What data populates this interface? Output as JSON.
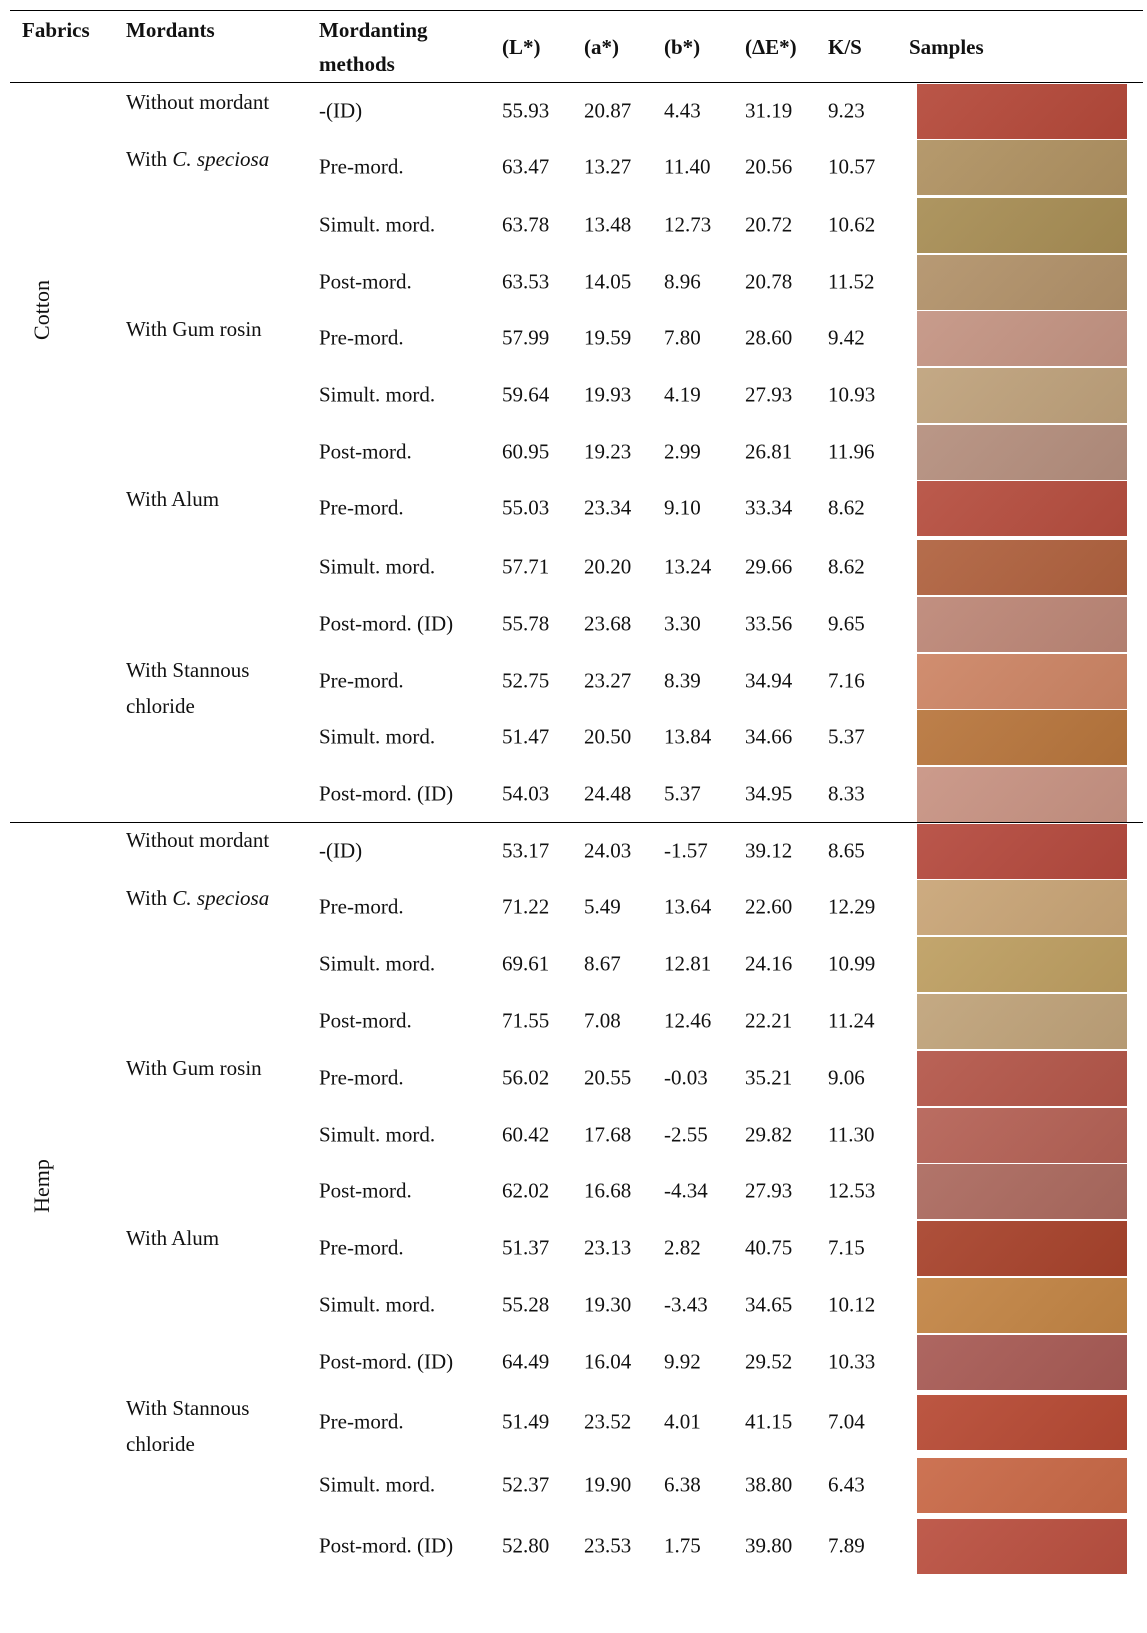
{
  "headers": {
    "fabrics": "Fabrics",
    "mordants": "Mordants",
    "methods_line1": "Mordanting",
    "methods_line2": "methods",
    "L": "(L*)",
    "a": "(a*)",
    "b": "(b*)",
    "dE": "(ΔE*)",
    "ks": "K/S",
    "samples": "Samples"
  },
  "groups": [
    {
      "fabric": "Cotton",
      "mordants": [
        {
          "prefix": "Without mordant",
          "italic": ""
        },
        {
          "prefix": "With ",
          "italic": "C. speciosa"
        },
        {
          "prefix": "With Gum rosin",
          "italic": ""
        },
        {
          "prefix": "With Alum",
          "italic": ""
        },
        {
          "prefix": "With Stannous chloride",
          "italic": ""
        }
      ],
      "rows": [
        {
          "method": "-(ID)",
          "L": "55.93",
          "a": "20.87",
          "b": "4.43",
          "dE": "31.19",
          "ks": "9.23",
          "color": "#b5493a"
        },
        {
          "method": "Pre-mord.",
          "L": "63.47",
          "a": "13.27",
          "b": "11.40",
          "dE": "20.56",
          "ks": "10.57",
          "color": "#b09262"
        },
        {
          "method": "Simult. mord.",
          "L": "63.78",
          "a": "13.48",
          "b": "12.73",
          "dE": "20.72",
          "ks": "10.62",
          "color": "#a88e55"
        },
        {
          "method": "Post-mord.",
          "L": "63.53",
          "a": "14.05",
          "b": "8.96",
          "dE": "20.78",
          "ks": "11.52",
          "color": "#b2926a"
        },
        {
          "method": "Pre-mord.",
          "L": "57.99",
          "a": "19.59",
          "b": "7.80",
          "dE": "28.60",
          "ks": "9.42",
          "color": "#c49483"
        },
        {
          "method": "Simult. mord.",
          "L": "59.64",
          "a": "19.93",
          "b": "4.19",
          "dE": "27.93",
          "ks": "10.93",
          "color": "#bfa27c"
        },
        {
          "method": "Post-mord.",
          "L": "60.95",
          "a": "19.23",
          "b": "2.99",
          "dE": "26.81",
          "ks": "11.96",
          "color": "#b58f7e"
        },
        {
          "method": "Pre-mord.",
          "L": "55.03",
          "a": "23.34",
          "b": "9.10",
          "dE": "33.34",
          "ks": "8.62",
          "color": "#b64e3f"
        },
        {
          "method": "Simult. mord.",
          "L": "57.71",
          "a": "20.20",
          "b": "13.24",
          "dE": "29.66",
          "ks": "8.62",
          "color": "#b0623f"
        },
        {
          "method": "Post-mord. (ID)",
          "L": "55.78",
          "a": "23.68",
          "b": "3.30",
          "dE": "33.56",
          "ks": "9.65",
          "color": "#bd8777"
        },
        {
          "method": "Pre-mord.",
          "L": "52.75",
          "a": "23.27",
          "b": "8.39",
          "dE": "34.94",
          "ks": "7.16",
          "color": "#cd8565"
        },
        {
          "method": "Simult. mord.",
          "L": "51.47",
          "a": "20.50",
          "b": "13.84",
          "dE": "34.66",
          "ks": "5.37",
          "color": "#b8763d"
        },
        {
          "method": "Post-mord. (ID)",
          "L": "54.03",
          "a": "24.48",
          "b": "5.37",
          "dE": "34.95",
          "ks": "8.33",
          "color": "#c89383"
        }
      ]
    },
    {
      "fabric": "Hemp",
      "mordants": [
        {
          "prefix": "Without mordant",
          "italic": ""
        },
        {
          "prefix": "With ",
          "italic": "C. speciosa"
        },
        {
          "prefix": "With Gum rosin",
          "italic": ""
        },
        {
          "prefix": "With Alum",
          "italic": ""
        },
        {
          "prefix": "With Stannous chloride",
          "italic": ""
        }
      ],
      "rows": [
        {
          "method": "-(ID)",
          "L": "53.17",
          "a": "24.03",
          "b": "-1.57",
          "dE": "39.12",
          "ks": "8.65",
          "color": "#b54a3e"
        },
        {
          "method": "Pre-mord.",
          "L": "71.22",
          "a": "5.49",
          "b": "13.64",
          "dE": "22.60",
          "ks": "12.29",
          "color": "#c9a577"
        },
        {
          "method": "Simult. mord.",
          "L": "69.61",
          "a": "8.67",
          "b": "12.81",
          "dE": "24.16",
          "ks": "10.99",
          "color": "#be9f62"
        },
        {
          "method": "Post-mord.",
          "L": "71.55",
          "a": "7.08",
          "b": "12.46",
          "dE": "22.21",
          "ks": "11.24",
          "color": "#c0a37a"
        },
        {
          "method": "Pre-mord.",
          "L": "56.02",
          "a": "20.55",
          "b": "-0.03",
          "dE": "35.21",
          "ks": "9.06",
          "color": "#b4574a"
        },
        {
          "method": "Simult. mord.",
          "L": "60.42",
          "a": "17.68",
          "b": "-2.55",
          "dE": "29.82",
          "ks": "11.30",
          "color": "#b56256"
        },
        {
          "method": "Post-mord.",
          "L": "62.02",
          "a": "16.68",
          "b": "-4.34",
          "dE": "27.93",
          "ks": "12.53",
          "color": "#ac6a5f"
        },
        {
          "method": "Pre-mord.",
          "L": "51.37",
          "a": "23.13",
          "b": "2.82",
          "dE": "40.75",
          "ks": "7.15",
          "color": "#a8432c"
        },
        {
          "method": "Simult. mord.",
          "L": "55.28",
          "a": "19.30",
          "b": "-3.43",
          "dE": "34.65",
          "ks": "10.12",
          "color": "#c38545"
        },
        {
          "method": "Post-mord. (ID)",
          "L": "64.49",
          "a": "16.04",
          "b": "9.92",
          "dE": "29.52",
          "ks": "10.33",
          "color": "#a85b55"
        },
        {
          "method": "Pre-mord.",
          "L": "51.49",
          "a": "23.52",
          "b": "4.01",
          "dE": "41.15",
          "ks": "7.04",
          "color": "#b74a34"
        },
        {
          "method": "Simult. mord.",
          "L": "52.37",
          "a": "19.90",
          "b": "6.38",
          "dE": "38.80",
          "ks": "6.43",
          "color": "#c96947"
        },
        {
          "method": "Post-mord. (ID)",
          "L": "52.80",
          "a": "23.53",
          "b": "1.75",
          "dE": "39.80",
          "ks": "7.89",
          "color": "#ba5040"
        }
      ]
    }
  ]
}
